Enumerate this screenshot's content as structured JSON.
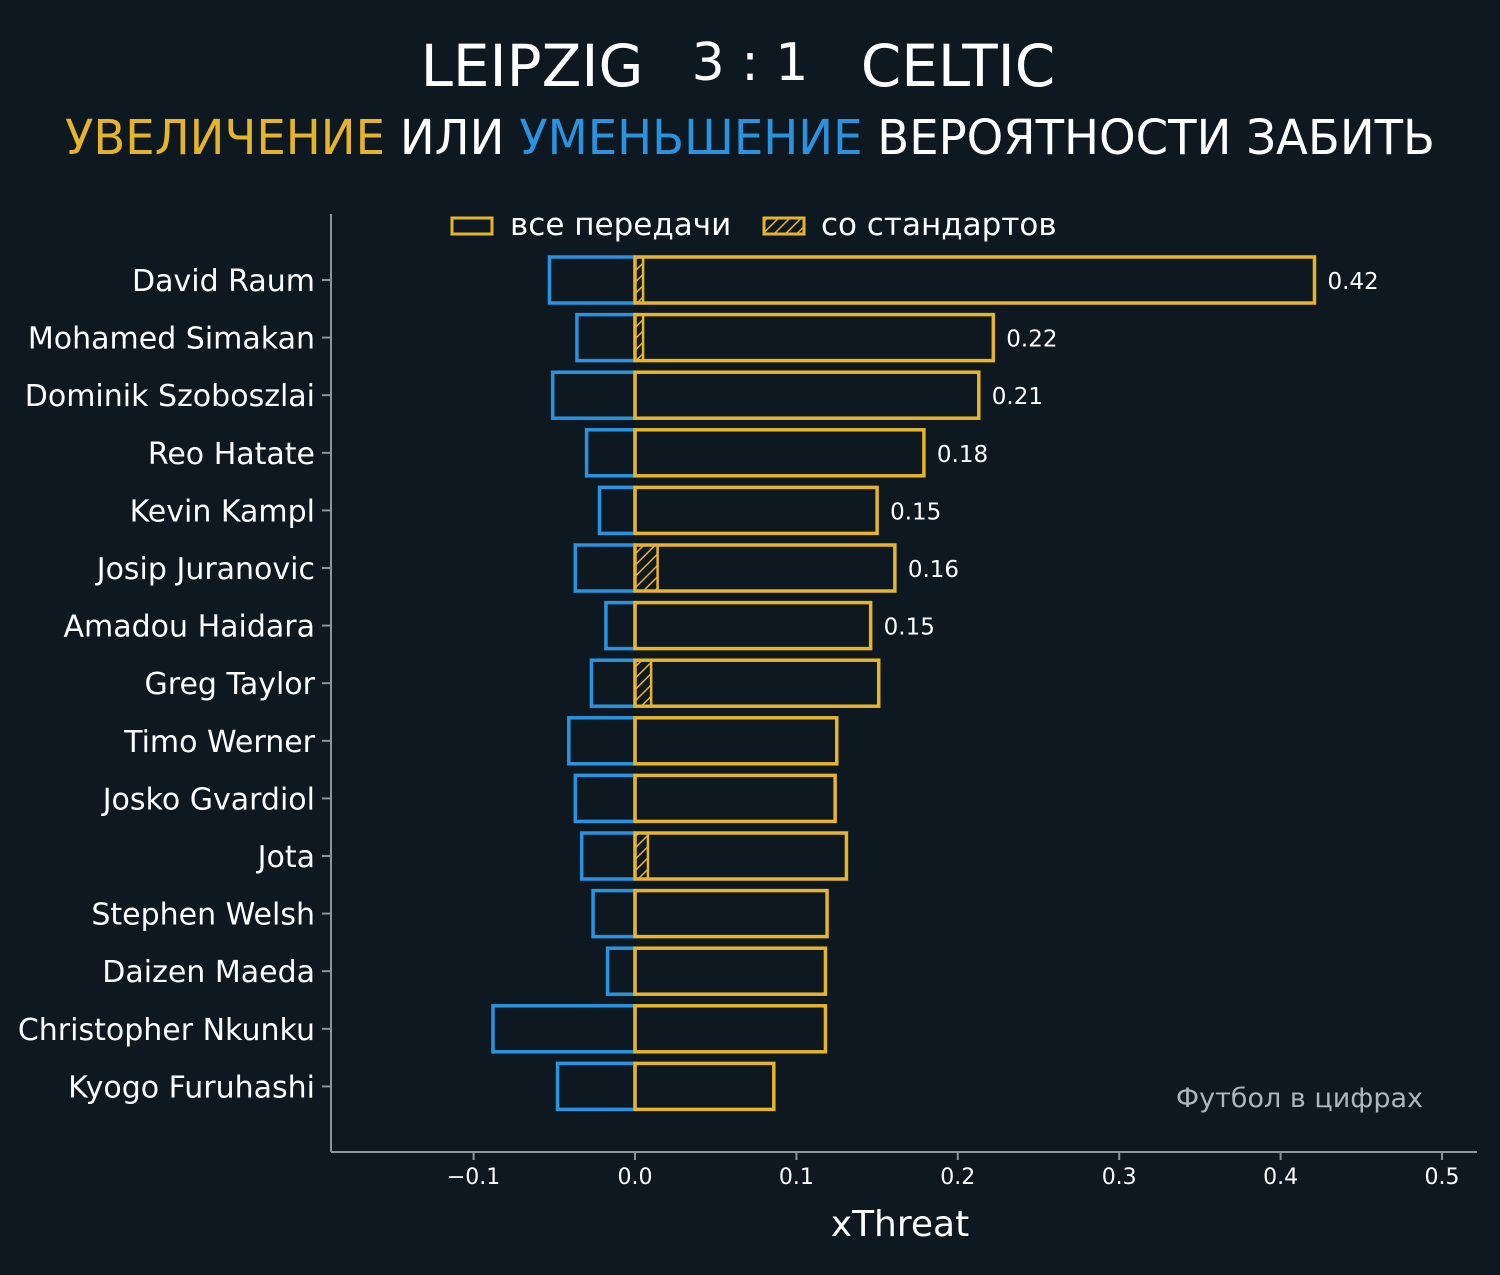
{
  "header": {
    "team_home": "LEIPZIG",
    "score": "3 : 1",
    "team_away": "CELTIC",
    "subtitle_increase": "УВЕЛИЧЕНИЕ",
    "subtitle_or": "ИЛИ",
    "subtitle_decrease": "УМЕНЬШЕНИЕ",
    "subtitle_rest": "ВЕРОЯТНОСТИ ЗАБИТЬ"
  },
  "legend": {
    "all_passes": "все передачи",
    "set_pieces": "со стандартов"
  },
  "credit": "Футбол в цифрах",
  "colors": {
    "background": "#0e1821",
    "increase": "#e5b42a",
    "decrease": "#2a93e0",
    "axis": "#8a959e"
  },
  "chart_data": {
    "type": "bar",
    "orientation": "horizontal",
    "xlabel": "xThreat",
    "xlim": [
      -0.19,
      0.52
    ],
    "xticks": [
      -0.1,
      0.0,
      0.1,
      0.2,
      0.3,
      0.4,
      0.5
    ],
    "xtick_labels": [
      "−0.1",
      "0.0",
      "0.1",
      "0.2",
      "0.3",
      "0.4",
      "0.5"
    ],
    "categories": [
      "David Raum",
      "Mohamed Simakan",
      "Dominik Szoboszlai",
      "Reo Hatate",
      "Kevin Kampl",
      "Josip Juranovic",
      "Amadou Haidara",
      "Greg Taylor",
      "Timo Werner",
      "Josko Gvardiol",
      "Jota",
      "Stephen Welsh",
      "Daizen Maeda",
      "Christopher Nkunku",
      "Kyogo Furuhashi"
    ],
    "series": [
      {
        "name": "увеличение (все передачи)",
        "values": [
          0.421,
          0.222,
          0.213,
          0.179,
          0.15,
          0.161,
          0.146,
          0.151,
          0.125,
          0.124,
          0.131,
          0.119,
          0.118,
          0.118,
          0.086
        ]
      },
      {
        "name": "уменьшение",
        "values": [
          -0.053,
          -0.036,
          -0.051,
          -0.03,
          -0.022,
          -0.037,
          -0.018,
          -0.027,
          -0.041,
          -0.037,
          -0.033,
          -0.026,
          -0.017,
          -0.088,
          -0.048
        ]
      },
      {
        "name": "со стандартов",
        "values": [
          0.005,
          0.005,
          0,
          0,
          0,
          0.014,
          0,
          0.01,
          0,
          0,
          0.008,
          0,
          0,
          0,
          0
        ]
      }
    ],
    "value_labels": [
      "0.42",
      "0.22",
      "0.21",
      "0.18",
      "0.15",
      "0.16",
      "0.15",
      "",
      "",
      "",
      "",
      "",
      "",
      "",
      ""
    ]
  }
}
